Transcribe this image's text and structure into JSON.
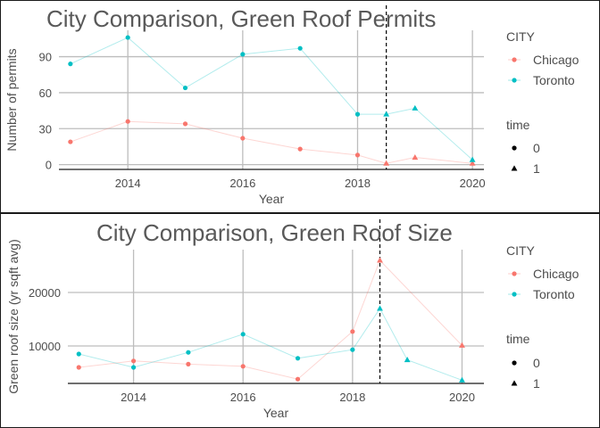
{
  "colors": {
    "chicago": "#F8766D",
    "toronto": "#00BFC4",
    "grid": "#bdbdbd",
    "text": "#4d4d4d",
    "title": "#595959"
  },
  "chart_data": [
    {
      "type": "scatter",
      "title": "City Comparison, Green Roof Permits",
      "xlabel": "Year",
      "ylabel": "Number of permits",
      "xlim": [
        2012.8,
        2020.2
      ],
      "ylim": [
        -4,
        112
      ],
      "xticks": [
        2014,
        2016,
        2018,
        2020
      ],
      "yticks": [
        0,
        30,
        60,
        90
      ],
      "vline": 2018.5,
      "grid": true,
      "legend": {
        "color_title": "CITY",
        "shape_title": "time",
        "entries": [
          "Chicago",
          "Toronto"
        ],
        "shapes": [
          "0",
          "1"
        ],
        "position": "right"
      },
      "series": [
        {
          "name": "Chicago",
          "color": "#F8766D",
          "points": [
            [
              2013,
              19,
              0
            ],
            [
              2014,
              36,
              0
            ],
            [
              2015,
              34,
              0
            ],
            [
              2016,
              22,
              0
            ],
            [
              2017,
              13,
              0
            ],
            [
              2018,
              8,
              0
            ],
            [
              2018.5,
              1,
              1
            ],
            [
              2019,
              6,
              1
            ],
            [
              2020,
              1,
              1
            ]
          ]
        },
        {
          "name": "Toronto",
          "color": "#00BFC4",
          "points": [
            [
              2013,
              84,
              0
            ],
            [
              2014,
              106,
              0
            ],
            [
              2015,
              64,
              0
            ],
            [
              2016,
              92,
              0
            ],
            [
              2017,
              97,
              0
            ],
            [
              2018,
              42,
              0
            ],
            [
              2018.5,
              42,
              1
            ],
            [
              2019,
              47,
              1
            ],
            [
              2020,
              4,
              1
            ]
          ]
        }
      ]
    },
    {
      "type": "scatter",
      "title": "City Comparison, Green Roof Size",
      "xlabel": "Year",
      "ylabel": "Green roof size (yr sqft avg)",
      "xlim": [
        2012.8,
        2020.4
      ],
      "ylim": [
        3000,
        28000
      ],
      "xticks": [
        2014,
        2016,
        2018,
        2020
      ],
      "yticks": [
        10000,
        20000
      ],
      "vline": 2018.5,
      "grid": true,
      "legend": {
        "color_title": "CITY",
        "shape_title": "time",
        "entries": [
          "Chicago",
          "Toronto"
        ],
        "shapes": [
          "0",
          "1"
        ],
        "position": "right"
      },
      "series": [
        {
          "name": "Chicago",
          "color": "#F8766D",
          "points": [
            [
              2013,
              6000,
              0
            ],
            [
              2014,
              7200,
              0
            ],
            [
              2015,
              6600,
              0
            ],
            [
              2016,
              6200,
              0
            ],
            [
              2017,
              3800,
              0
            ],
            [
              2018,
              12700,
              0
            ],
            [
              2018.5,
              26000,
              1
            ],
            [
              2020,
              10100,
              1
            ]
          ]
        },
        {
          "name": "Toronto",
          "color": "#00BFC4",
          "points": [
            [
              2013,
              8500,
              0
            ],
            [
              2014,
              6000,
              0
            ],
            [
              2015,
              8800,
              0
            ],
            [
              2016,
              12200,
              0
            ],
            [
              2017,
              7700,
              0
            ],
            [
              2018,
              9300,
              0
            ],
            [
              2018.5,
              17000,
              1
            ],
            [
              2019,
              7400,
              1
            ],
            [
              2020,
              3600,
              1
            ]
          ]
        }
      ]
    }
  ]
}
